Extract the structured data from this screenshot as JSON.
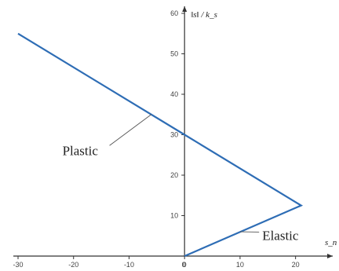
{
  "chart_data": {
    "type": "line",
    "title": "",
    "xlabel": "s_n",
    "ylabel": "‖s‖ / k_s",
    "xlim": [
      -30,
      25
    ],
    "ylim": [
      0,
      60
    ],
    "x_ticks": [
      -30,
      -20,
      -10,
      0,
      10,
      20
    ],
    "y_ticks": [
      10,
      20,
      30,
      40,
      50,
      60
    ],
    "grid": false,
    "legend": "none",
    "series": [
      {
        "x": [
          -30,
          0,
          21,
          0
        ],
        "y": [
          55,
          30,
          12.5,
          0
        ],
        "color": "#2e6db5"
      }
    ],
    "annotations": [
      {
        "text": "Plastic",
        "label_at": [
          -22,
          25
        ],
        "points_to": [
          -6,
          35
        ]
      },
      {
        "text": "Elastic",
        "label_at": [
          14,
          4
        ],
        "points_to": [
          10,
          6
        ]
      }
    ]
  }
}
